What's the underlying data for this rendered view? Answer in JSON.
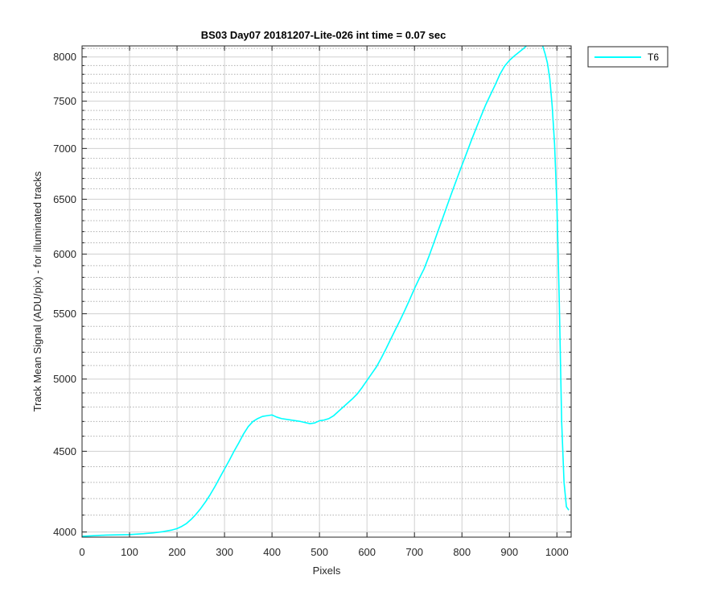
{
  "chart_data": {
    "type": "line",
    "title": "BS03 Day07 20181207-Lite-026 int time = 0.07 sec",
    "xlabel": "Pixels",
    "ylabel": "Track Mean Signal (ADU/pix) - for illuminated tracks",
    "xlim": [
      0,
      1030
    ],
    "ylim": [
      3970,
      8130
    ],
    "yscale": "log",
    "grid": true,
    "minor_grid": true,
    "legend_location": "outside-top-right",
    "x_ticks": [
      0,
      100,
      200,
      300,
      400,
      500,
      600,
      700,
      800,
      900,
      1000
    ],
    "y_ticks": [
      4000,
      4500,
      5000,
      5500,
      6000,
      6500,
      7000,
      7500,
      8000
    ],
    "y_minor_ticks": [
      4100,
      4200,
      4300,
      4400,
      4600,
      4700,
      4800,
      4900,
      5100,
      5200,
      5300,
      5400,
      5600,
      5700,
      5800,
      5900,
      6100,
      6200,
      6300,
      6400,
      6600,
      6700,
      6800,
      6900,
      7100,
      7200,
      7300,
      7400,
      7600,
      7700,
      7800,
      7900,
      8100
    ],
    "series": [
      {
        "name": "T6",
        "color": "#00FFFF",
        "x": [
          0,
          20,
          50,
          100,
          130,
          150,
          170,
          190,
          200,
          210,
          220,
          230,
          240,
          250,
          260,
          270,
          280,
          290,
          300,
          310,
          320,
          330,
          340,
          350,
          360,
          370,
          380,
          390,
          400,
          410,
          420,
          440,
          460,
          480,
          490,
          500,
          510,
          520,
          530,
          540,
          550,
          560,
          570,
          580,
          590,
          600,
          610,
          620,
          630,
          640,
          650,
          660,
          670,
          680,
          690,
          700,
          710,
          720,
          730,
          740,
          750,
          760,
          770,
          780,
          790,
          800,
          810,
          820,
          830,
          840,
          850,
          860,
          870,
          880,
          890,
          900,
          910,
          920,
          930,
          940,
          950,
          960,
          965,
          970,
          975,
          980,
          985,
          990,
          995,
          1000,
          1005,
          1010,
          1015,
          1020,
          1025
        ],
        "y": [
          3975,
          3978,
          3982,
          3985,
          3990,
          3995,
          4002,
          4012,
          4020,
          4033,
          4050,
          4075,
          4105,
          4140,
          4180,
          4225,
          4275,
          4330,
          4385,
          4440,
          4500,
          4555,
          4615,
          4665,
          4700,
          4720,
          4735,
          4740,
          4745,
          4730,
          4720,
          4710,
          4700,
          4685,
          4690,
          4705,
          4710,
          4720,
          4740,
          4770,
          4800,
          4830,
          4860,
          4895,
          4940,
          4990,
          5040,
          5090,
          5155,
          5225,
          5300,
          5375,
          5450,
          5530,
          5615,
          5705,
          5790,
          5870,
          5975,
          6090,
          6210,
          6330,
          6455,
          6580,
          6705,
          6830,
          6955,
          7085,
          7210,
          7335,
          7460,
          7570,
          7680,
          7800,
          7895,
          7960,
          8010,
          8055,
          8100,
          8155,
          8200,
          8215,
          8180,
          8130,
          8040,
          7930,
          7750,
          7450,
          7050,
          6450,
          5600,
          4700,
          4300,
          4150,
          4130
        ]
      }
    ]
  }
}
